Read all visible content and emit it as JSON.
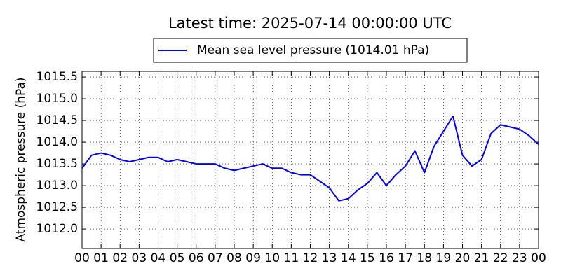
{
  "chart_data": {
    "type": "line",
    "title": "Latest time: 2025-07-14 00:00:00 UTC",
    "y_label": "Atmospheric pressure (hPa)",
    "x": [
      0,
      0.5,
      1,
      1.5,
      2,
      2.5,
      3,
      3.5,
      4,
      4.5,
      5,
      5.5,
      6,
      6.5,
      7,
      7.5,
      8,
      8.5,
      9,
      9.5,
      10,
      10.5,
      11,
      11.5,
      12,
      12.5,
      13,
      13.5,
      14,
      14.5,
      15,
      15.5,
      16,
      16.5,
      17,
      17.5,
      18,
      18.5,
      19,
      19.5,
      20,
      20.5,
      21,
      21.5,
      22,
      22.5,
      23,
      23.5,
      24
    ],
    "series": [
      {
        "name": "Mean sea level pressure (1014.01 hPa)",
        "color": "#0000ff",
        "values": [
          1013.4,
          1013.7,
          1013.75,
          1013.7,
          1013.6,
          1013.55,
          1013.6,
          1013.65,
          1013.65,
          1013.55,
          1013.6,
          1013.55,
          1013.5,
          1013.5,
          1013.5,
          1013.4,
          1013.35,
          1013.4,
          1013.45,
          1013.5,
          1013.4,
          1013.4,
          1013.3,
          1013.25,
          1013.25,
          1013.1,
          1012.95,
          1012.65,
          1012.7,
          1012.9,
          1013.05,
          1013.3,
          1013.0,
          1013.25,
          1013.45,
          1013.8,
          1013.3,
          1013.9,
          1014.25,
          1014.6,
          1013.7,
          1013.45,
          1013.6,
          1014.2,
          1014.4,
          1014.35,
          1014.3,
          1014.15,
          1013.95
        ]
      }
    ],
    "xlim": [
      0,
      24
    ],
    "xticks": [
      {
        "value": 0,
        "label": "00"
      },
      {
        "value": 1,
        "label": "01"
      },
      {
        "value": 2,
        "label": "02"
      },
      {
        "value": 3,
        "label": "03"
      },
      {
        "value": 4,
        "label": "04"
      },
      {
        "value": 5,
        "label": "05"
      },
      {
        "value": 6,
        "label": "06"
      },
      {
        "value": 7,
        "label": "07"
      },
      {
        "value": 8,
        "label": "08"
      },
      {
        "value": 9,
        "label": "09"
      },
      {
        "value": 10,
        "label": "10"
      },
      {
        "value": 11,
        "label": "11"
      },
      {
        "value": 12,
        "label": "12"
      },
      {
        "value": 13,
        "label": "13"
      },
      {
        "value": 14,
        "label": "14"
      },
      {
        "value": 15,
        "label": "15"
      },
      {
        "value": 16,
        "label": "16"
      },
      {
        "value": 17,
        "label": "17"
      },
      {
        "value": 18,
        "label": "18"
      },
      {
        "value": 19,
        "label": "19"
      },
      {
        "value": 20,
        "label": "20"
      },
      {
        "value": 21,
        "label": "21"
      },
      {
        "value": 22,
        "label": "22"
      },
      {
        "value": 23,
        "label": "23"
      },
      {
        "value": 24,
        "label": "00"
      }
    ],
    "ylim": [
      1011.55,
      1015.63
    ],
    "yticks": [
      {
        "value": 1012,
        "label": "1012.0"
      },
      1012.5,
      {
        "value": 1013,
        "label": "1013.0"
      },
      1013.5,
      {
        "value": 1014,
        "label": "1014.0"
      },
      1014.5,
      {
        "value": 1015,
        "label": "1015.0"
      },
      1015.5
    ],
    "grid": true
  }
}
